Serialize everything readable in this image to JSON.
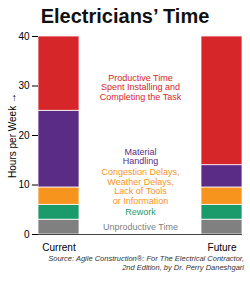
{
  "chart_data": {
    "type": "bar",
    "stacked": true,
    "title": "Electricians’ Time",
    "y_label": "Hours per Week",
    "caption": "Source: Agile Construction®: For The Electrical Contractor,\n2nd Edition, by Dr. Perry Daneshgari",
    "categories": [
      "Current",
      "Future"
    ],
    "series": [
      {
        "name": "Unproductive Time",
        "color": "#808080",
        "values": [
          3,
          3
        ]
      },
      {
        "name": "Rework",
        "color": "#1b9a6b",
        "values": [
          3,
          3
        ]
      },
      {
        "name": "Congestion Delays,\nWeather Delays,\nLack of Tools\nor Information",
        "color": "#f7941d",
        "values": [
          3.5,
          3.5
        ]
      },
      {
        "name": "Material\nHandling",
        "color": "#5b2c86",
        "values": [
          15.5,
          4.5
        ]
      },
      {
        "name": "Productive Time\nSpent Installing and\nCompleting the Task",
        "color": "#d7262a",
        "values": [
          15,
          26
        ]
      }
    ],
    "ylim": [
      0,
      40
    ],
    "yticks": [
      0,
      10,
      20,
      30,
      40
    ],
    "grid": false,
    "data_labels": false
  }
}
